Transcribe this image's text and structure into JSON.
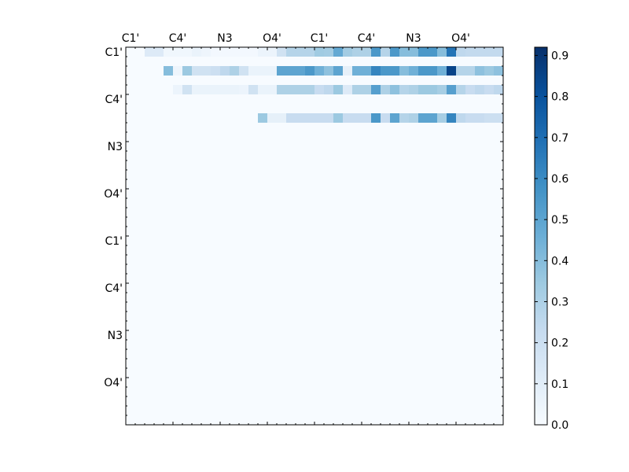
{
  "chart_data": {
    "type": "heatmap",
    "title": "",
    "xlabel": "",
    "ylabel": "",
    "n": 40,
    "tick_labels": [
      "C1'",
      "C4'",
      "N3",
      "O4'",
      "C1'",
      "C4'",
      "N3",
      "O4'"
    ],
    "colorbar": {
      "colormap": "Blues",
      "vmin": 0.0,
      "vmax": 0.92,
      "ticks": [
        "0.0",
        "0.1",
        "0.2",
        "0.3",
        "0.4",
        "0.5",
        "0.6",
        "0.7",
        "0.8",
        "0.9"
      ]
    },
    "values": [
      [
        0,
        0,
        0.12,
        0.12,
        0.03,
        0.03,
        0.03,
        0.06,
        0.04,
        0.02,
        0.02,
        0.02,
        0.02,
        0.02,
        0.05,
        0.05,
        0.18,
        0.28,
        0.28,
        0.28,
        0.34,
        0.33,
        0.48,
        0.33,
        0.3,
        0.3,
        0.55,
        0.28,
        0.55,
        0.4,
        0.4,
        0.55,
        0.55,
        0.4,
        0.68,
        0.25,
        0.24,
        0.24,
        0.24,
        0.24
      ],
      [
        0,
        0,
        0,
        0,
        0,
        0,
        0,
        0,
        0,
        0,
        0,
        0,
        0,
        0,
        0,
        0,
        0,
        0,
        0,
        0,
        0,
        0,
        0,
        0,
        0,
        0,
        0,
        0,
        0,
        0,
        0,
        0,
        0,
        0,
        0,
        0,
        0,
        0,
        0,
        0
      ],
      [
        0,
        0,
        0,
        0,
        0.4,
        0.04,
        0.35,
        0.18,
        0.18,
        0.2,
        0.25,
        0.3,
        0.18,
        0.06,
        0.06,
        0.06,
        0.5,
        0.5,
        0.5,
        0.55,
        0.45,
        0.38,
        0.5,
        0.08,
        0.45,
        0.45,
        0.62,
        0.55,
        0.55,
        0.4,
        0.45,
        0.55,
        0.55,
        0.45,
        0.85,
        0.28,
        0.28,
        0.38,
        0.35,
        0.38
      ],
      [
        0,
        0,
        0,
        0,
        0,
        0,
        0,
        0,
        0,
        0,
        0,
        0,
        0,
        0,
        0,
        0,
        0,
        0,
        0,
        0,
        0,
        0,
        0,
        0,
        0,
        0,
        0,
        0,
        0,
        0,
        0,
        0,
        0,
        0,
        0,
        0,
        0,
        0,
        0,
        0
      ],
      [
        0,
        0,
        0,
        0,
        0,
        0.05,
        0.18,
        0.06,
        0.06,
        0.06,
        0.06,
        0.06,
        0.05,
        0.18,
        0.06,
        0.06,
        0.3,
        0.3,
        0.3,
        0.3,
        0.22,
        0.25,
        0.35,
        0.12,
        0.3,
        0.3,
        0.52,
        0.3,
        0.38,
        0.28,
        0.3,
        0.35,
        0.35,
        0.32,
        0.52,
        0.28,
        0.22,
        0.25,
        0.22,
        0.25
      ],
      [
        0,
        0,
        0,
        0,
        0,
        0,
        0,
        0,
        0,
        0,
        0,
        0,
        0,
        0,
        0,
        0,
        0,
        0,
        0,
        0,
        0,
        0,
        0,
        0,
        0,
        0,
        0,
        0,
        0,
        0,
        0,
        0,
        0,
        0,
        0,
        0,
        0,
        0,
        0,
        0
      ],
      [
        0,
        0,
        0,
        0,
        0,
        0,
        0,
        0,
        0,
        0,
        0,
        0,
        0,
        0,
        0,
        0,
        0,
        0,
        0,
        0,
        0,
        0,
        0,
        0,
        0,
        0,
        0,
        0,
        0,
        0,
        0,
        0,
        0,
        0,
        0,
        0,
        0,
        0,
        0,
        0
      ],
      [
        0,
        0,
        0,
        0,
        0,
        0,
        0,
        0,
        0,
        0,
        0,
        0,
        0,
        0,
        0.35,
        0.08,
        0.08,
        0.22,
        0.22,
        0.22,
        0.22,
        0.22,
        0.35,
        0.22,
        0.22,
        0.22,
        0.55,
        0.22,
        0.5,
        0.28,
        0.3,
        0.5,
        0.5,
        0.32,
        0.62,
        0.25,
        0.22,
        0.22,
        0.2,
        0.2
      ],
      [
        0,
        0,
        0,
        0,
        0,
        0,
        0,
        0,
        0,
        0,
        0,
        0,
        0,
        0,
        0,
        0,
        0,
        0,
        0,
        0,
        0,
        0,
        0,
        0,
        0,
        0,
        0,
        0,
        0,
        0,
        0,
        0,
        0,
        0,
        0,
        0,
        0,
        0,
        0,
        0
      ],
      [
        0,
        0,
        0,
        0,
        0,
        0,
        0,
        0,
        0,
        0,
        0,
        0,
        0,
        0,
        0,
        0,
        0,
        0,
        0,
        0,
        0,
        0,
        0,
        0,
        0,
        0,
        0,
        0,
        0,
        0,
        0,
        0,
        0,
        0,
        0,
        0,
        0,
        0,
        0,
        0
      ],
      [
        0,
        0,
        0,
        0,
        0,
        0,
        0,
        0,
        0,
        0,
        0,
        0,
        0,
        0,
        0,
        0,
        0,
        0,
        0,
        0,
        0,
        0,
        0,
        0,
        0,
        0,
        0,
        0,
        0,
        0,
        0,
        0,
        0,
        0,
        0,
        0,
        0,
        0,
        0,
        0
      ],
      [
        0,
        0,
        0,
        0,
        0,
        0,
        0,
        0,
        0,
        0,
        0,
        0,
        0,
        0,
        0,
        0,
        0,
        0,
        0,
        0,
        0,
        0,
        0,
        0,
        0,
        0,
        0,
        0,
        0,
        0,
        0,
        0,
        0,
        0,
        0,
        0,
        0,
        0,
        0,
        0
      ],
      [
        0,
        0,
        0,
        0,
        0,
        0,
        0,
        0,
        0,
        0,
        0,
        0,
        0,
        0,
        0,
        0,
        0,
        0,
        0,
        0,
        0,
        0,
        0,
        0,
        0,
        0,
        0,
        0,
        0,
        0,
        0,
        0,
        0,
        0,
        0,
        0,
        0,
        0,
        0,
        0
      ],
      [
        0,
        0,
        0,
        0,
        0,
        0,
        0,
        0,
        0,
        0,
        0,
        0,
        0,
        0,
        0,
        0,
        0,
        0,
        0,
        0,
        0,
        0,
        0,
        0,
        0,
        0,
        0,
        0,
        0,
        0,
        0,
        0,
        0,
        0,
        0,
        0,
        0,
        0,
        0,
        0
      ],
      [
        0,
        0,
        0,
        0,
        0,
        0,
        0,
        0,
        0,
        0,
        0,
        0,
        0,
        0,
        0,
        0,
        0,
        0,
        0,
        0,
        0,
        0,
        0,
        0,
        0,
        0,
        0,
        0,
        0,
        0,
        0,
        0,
        0,
        0,
        0,
        0,
        0,
        0,
        0,
        0
      ],
      [
        0,
        0,
        0,
        0,
        0,
        0,
        0,
        0,
        0,
        0,
        0,
        0,
        0,
        0,
        0,
        0,
        0,
        0,
        0,
        0,
        0,
        0,
        0,
        0,
        0,
        0,
        0,
        0,
        0,
        0,
        0,
        0,
        0,
        0,
        0,
        0,
        0,
        0,
        0,
        0
      ],
      [
        0,
        0,
        0,
        0,
        0,
        0,
        0,
        0,
        0,
        0,
        0,
        0,
        0,
        0,
        0,
        0,
        0,
        0,
        0,
        0,
        0,
        0,
        0,
        0,
        0,
        0,
        0,
        0,
        0,
        0,
        0,
        0,
        0,
        0,
        0,
        0,
        0,
        0,
        0,
        0
      ],
      [
        0,
        0,
        0,
        0,
        0,
        0,
        0,
        0,
        0,
        0,
        0,
        0,
        0,
        0,
        0,
        0,
        0,
        0,
        0,
        0,
        0,
        0,
        0,
        0,
        0,
        0,
        0,
        0,
        0,
        0,
        0,
        0,
        0,
        0,
        0,
        0,
        0,
        0,
        0,
        0
      ],
      [
        0,
        0,
        0,
        0,
        0,
        0,
        0,
        0,
        0,
        0,
        0,
        0,
        0,
        0,
        0,
        0,
        0,
        0,
        0,
        0,
        0,
        0,
        0,
        0,
        0,
        0,
        0,
        0,
        0,
        0,
        0,
        0,
        0,
        0,
        0,
        0,
        0,
        0,
        0,
        0
      ],
      [
        0,
        0,
        0,
        0,
        0,
        0,
        0,
        0,
        0,
        0,
        0,
        0,
        0,
        0,
        0,
        0,
        0,
        0,
        0,
        0,
        0,
        0,
        0,
        0,
        0,
        0,
        0,
        0,
        0,
        0,
        0,
        0,
        0,
        0,
        0,
        0,
        0,
        0,
        0,
        0
      ],
      [
        0,
        0,
        0,
        0,
        0,
        0,
        0,
        0,
        0,
        0,
        0,
        0,
        0,
        0,
        0,
        0,
        0,
        0,
        0,
        0,
        0,
        0,
        0,
        0,
        0,
        0,
        0,
        0,
        0,
        0,
        0,
        0,
        0,
        0,
        0,
        0,
        0,
        0,
        0,
        0
      ],
      [
        0,
        0,
        0,
        0,
        0,
        0,
        0,
        0,
        0,
        0,
        0,
        0,
        0,
        0,
        0,
        0,
        0,
        0,
        0,
        0,
        0,
        0,
        0,
        0,
        0,
        0,
        0,
        0,
        0,
        0,
        0,
        0,
        0,
        0,
        0,
        0,
        0,
        0,
        0,
        0
      ],
      [
        0,
        0,
        0,
        0,
        0,
        0,
        0,
        0,
        0,
        0,
        0,
        0,
        0,
        0,
        0,
        0,
        0,
        0,
        0,
        0,
        0,
        0,
        0,
        0,
        0,
        0,
        0,
        0,
        0,
        0,
        0,
        0,
        0,
        0,
        0,
        0,
        0,
        0,
        0,
        0
      ],
      [
        0,
        0,
        0,
        0,
        0,
        0,
        0,
        0,
        0,
        0,
        0,
        0,
        0,
        0,
        0,
        0,
        0,
        0,
        0,
        0,
        0,
        0,
        0,
        0,
        0,
        0,
        0,
        0,
        0,
        0,
        0,
        0,
        0,
        0,
        0,
        0,
        0,
        0,
        0,
        0
      ],
      [
        0,
        0,
        0,
        0,
        0,
        0,
        0,
        0,
        0,
        0,
        0,
        0,
        0,
        0,
        0,
        0,
        0,
        0,
        0,
        0,
        0,
        0,
        0,
        0,
        0,
        0,
        0,
        0,
        0,
        0,
        0,
        0,
        0,
        0,
        0,
        0,
        0,
        0,
        0,
        0
      ],
      [
        0,
        0,
        0,
        0,
        0,
        0,
        0,
        0,
        0,
        0,
        0,
        0,
        0,
        0,
        0,
        0,
        0,
        0,
        0,
        0,
        0,
        0,
        0,
        0,
        0,
        0,
        0,
        0,
        0,
        0,
        0,
        0,
        0,
        0,
        0,
        0,
        0,
        0,
        0,
        0
      ],
      [
        0,
        0,
        0,
        0,
        0,
        0,
        0,
        0,
        0,
        0,
        0,
        0,
        0,
        0,
        0,
        0,
        0,
        0,
        0,
        0,
        0,
        0,
        0,
        0,
        0,
        0,
        0,
        0,
        0,
        0,
        0,
        0,
        0,
        0,
        0,
        0,
        0,
        0,
        0,
        0
      ],
      [
        0,
        0,
        0,
        0,
        0,
        0,
        0,
        0,
        0,
        0,
        0,
        0,
        0,
        0,
        0,
        0,
        0,
        0,
        0,
        0,
        0,
        0,
        0,
        0,
        0,
        0,
        0,
        0,
        0,
        0,
        0,
        0,
        0,
        0,
        0,
        0,
        0,
        0,
        0,
        0
      ],
      [
        0,
        0,
        0,
        0,
        0,
        0,
        0,
        0,
        0,
        0,
        0,
        0,
        0,
        0,
        0,
        0,
        0,
        0,
        0,
        0,
        0,
        0,
        0,
        0,
        0,
        0,
        0,
        0,
        0,
        0,
        0,
        0,
        0,
        0,
        0,
        0,
        0,
        0,
        0,
        0
      ],
      [
        0,
        0,
        0,
        0,
        0,
        0,
        0,
        0,
        0,
        0,
        0,
        0,
        0,
        0,
        0,
        0,
        0,
        0,
        0,
        0,
        0,
        0,
        0,
        0,
        0,
        0,
        0,
        0,
        0,
        0,
        0,
        0,
        0,
        0,
        0,
        0,
        0,
        0,
        0,
        0
      ],
      [
        0,
        0,
        0,
        0,
        0,
        0,
        0,
        0,
        0,
        0,
        0,
        0,
        0,
        0,
        0,
        0,
        0,
        0,
        0,
        0,
        0,
        0,
        0,
        0,
        0,
        0,
        0,
        0,
        0,
        0,
        0,
        0,
        0,
        0,
        0,
        0,
        0,
        0,
        0,
        0
      ],
      [
        0,
        0,
        0,
        0,
        0,
        0,
        0,
        0,
        0,
        0,
        0,
        0,
        0,
        0,
        0,
        0,
        0,
        0,
        0,
        0,
        0,
        0,
        0,
        0,
        0,
        0,
        0,
        0,
        0,
        0,
        0,
        0,
        0,
        0,
        0,
        0,
        0,
        0,
        0,
        0
      ],
      [
        0,
        0,
        0,
        0,
        0,
        0,
        0,
        0,
        0,
        0,
        0,
        0,
        0,
        0,
        0,
        0,
        0,
        0,
        0,
        0,
        0,
        0,
        0,
        0,
        0,
        0,
        0,
        0,
        0,
        0,
        0,
        0,
        0,
        0,
        0,
        0,
        0,
        0,
        0,
        0
      ],
      [
        0,
        0,
        0,
        0,
        0,
        0,
        0,
        0,
        0,
        0,
        0,
        0,
        0,
        0,
        0,
        0,
        0,
        0,
        0,
        0,
        0,
        0,
        0,
        0,
        0,
        0,
        0,
        0,
        0,
        0,
        0,
        0,
        0,
        0,
        0,
        0,
        0,
        0,
        0,
        0
      ],
      [
        0,
        0,
        0,
        0,
        0,
        0,
        0,
        0,
        0,
        0,
        0,
        0,
        0,
        0,
        0,
        0,
        0,
        0,
        0,
        0,
        0,
        0,
        0,
        0,
        0,
        0,
        0,
        0,
        0,
        0,
        0,
        0,
        0,
        0,
        0,
        0,
        0,
        0,
        0,
        0
      ],
      [
        0,
        0,
        0,
        0,
        0,
        0,
        0,
        0,
        0,
        0,
        0,
        0,
        0,
        0,
        0,
        0,
        0,
        0,
        0,
        0,
        0,
        0,
        0,
        0,
        0,
        0,
        0,
        0,
        0,
        0,
        0,
        0,
        0,
        0,
        0,
        0,
        0,
        0,
        0,
        0
      ],
      [
        0,
        0,
        0,
        0,
        0,
        0,
        0,
        0,
        0,
        0,
        0,
        0,
        0,
        0,
        0,
        0,
        0,
        0,
        0,
        0,
        0,
        0,
        0,
        0,
        0,
        0,
        0,
        0,
        0,
        0,
        0,
        0,
        0,
        0,
        0,
        0,
        0,
        0,
        0,
        0
      ],
      [
        0,
        0,
        0,
        0,
        0,
        0,
        0,
        0,
        0,
        0,
        0,
        0,
        0,
        0,
        0,
        0,
        0,
        0,
        0,
        0,
        0,
        0,
        0,
        0,
        0,
        0,
        0,
        0,
        0,
        0,
        0,
        0,
        0,
        0,
        0,
        0,
        0,
        0,
        0,
        0
      ],
      [
        0,
        0,
        0,
        0,
        0,
        0,
        0,
        0,
        0,
        0,
        0,
        0,
        0,
        0,
        0,
        0,
        0,
        0,
        0,
        0,
        0,
        0,
        0,
        0,
        0,
        0,
        0,
        0,
        0,
        0,
        0,
        0,
        0,
        0,
        0,
        0,
        0,
        0,
        0,
        0
      ],
      [
        0,
        0,
        0,
        0,
        0,
        0,
        0,
        0,
        0,
        0,
        0,
        0,
        0,
        0,
        0,
        0,
        0,
        0,
        0,
        0,
        0,
        0,
        0,
        0,
        0,
        0,
        0,
        0,
        0,
        0,
        0,
        0,
        0,
        0,
        0,
        0,
        0,
        0,
        0,
        0
      ]
    ]
  }
}
